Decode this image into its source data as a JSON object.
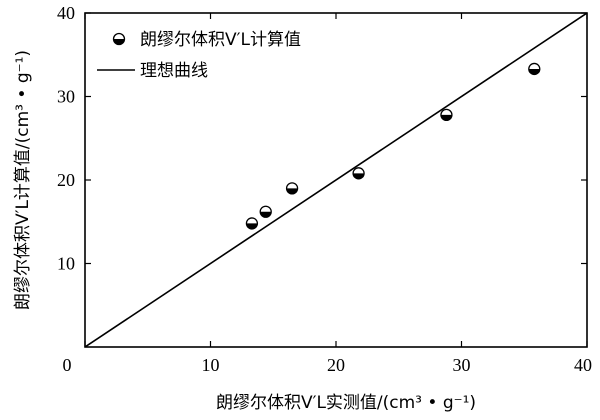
{
  "chart_data": {
    "type": "scatter",
    "xlabel": "朗缪尔体积V′L实测值/(cm³ • g⁻¹)",
    "ylabel": "朗缪尔体积V′L计算值/(cm³ • g⁻¹)",
    "xlim": [
      0,
      40
    ],
    "ylim": [
      0,
      40
    ],
    "xticks": [
      0,
      10,
      20,
      30,
      40
    ],
    "yticks": [
      10,
      20,
      30,
      40
    ],
    "grid": false,
    "legend_position": "top-left",
    "series": [
      {
        "name": "朗缪尔体积V′L计算值",
        "kind": "scatter",
        "marker": "half-filled-circle",
        "points": [
          {
            "x": 13.3,
            "y": 14.8
          },
          {
            "x": 14.4,
            "y": 16.2
          },
          {
            "x": 16.5,
            "y": 19.0
          },
          {
            "x": 21.8,
            "y": 20.8
          },
          {
            "x": 28.8,
            "y": 27.8
          },
          {
            "x": 35.8,
            "y": 33.3
          }
        ]
      },
      {
        "name": "理想曲线",
        "kind": "line",
        "color": "#000000",
        "points": [
          {
            "x": 0,
            "y": 0
          },
          {
            "x": 40,
            "y": 40
          }
        ]
      }
    ]
  }
}
